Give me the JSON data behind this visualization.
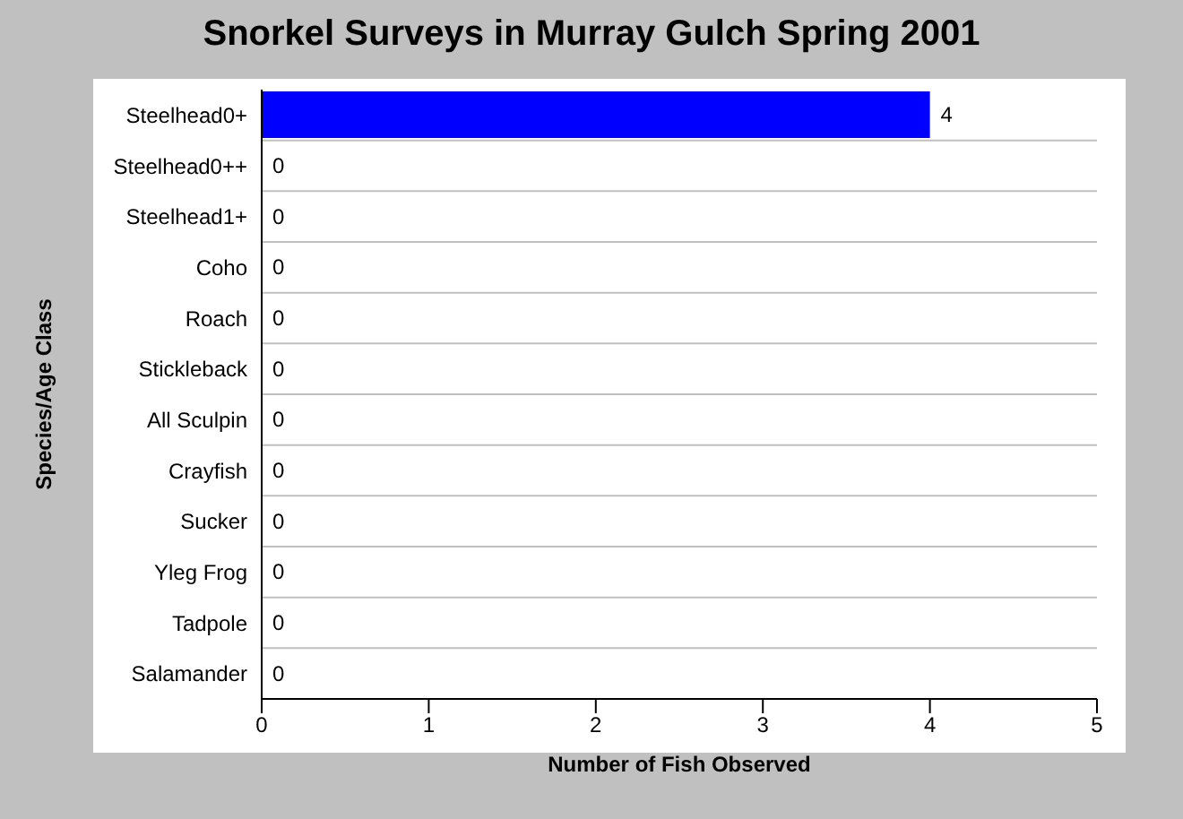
{
  "chart_data": {
    "type": "bar",
    "orientation": "horizontal",
    "title": "Snorkel Surveys in Murray Gulch Spring 2001",
    "xlabel": "Number of Fish Observed",
    "ylabel": "Species/Age Class",
    "categories": [
      "Steelhead0+",
      "Steelhead0++",
      "Steelhead1+",
      "Coho",
      "Roach",
      "Stickleback",
      "All Sculpin",
      "Crayfish",
      "Sucker",
      "Yleg Frog",
      "Tadpole",
      "Salamander"
    ],
    "values": [
      4,
      0,
      0,
      0,
      0,
      0,
      0,
      0,
      0,
      0,
      0,
      0
    ],
    "color": "#0000ff",
    "xlim": [
      0,
      5
    ],
    "xticks": [
      0,
      1,
      2,
      3,
      4,
      5
    ],
    "grid": "y",
    "data_labels": true
  }
}
